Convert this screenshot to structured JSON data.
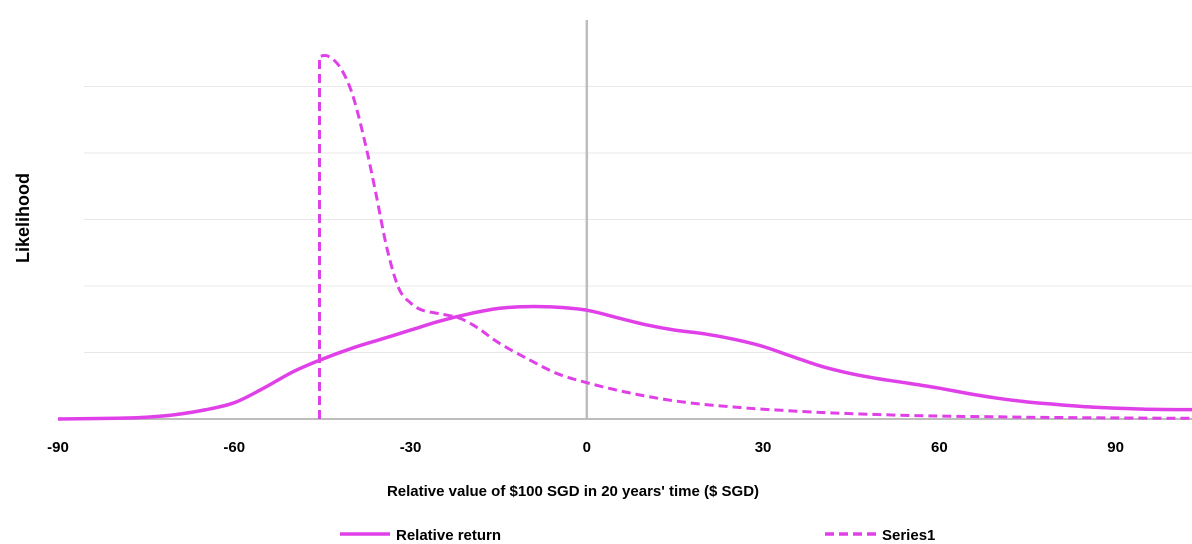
{
  "chart_data": {
    "type": "area",
    "xlabel": "Relative value of $100 SGD in 20 years' time ($ SGD)",
    "ylabel": "Likelihood",
    "xlim": [
      -90,
      103
    ],
    "ylim": [
      0,
      1.1
    ],
    "x_ticks": [
      -90,
      -60,
      -30,
      0,
      30,
      60,
      90
    ],
    "grid": true,
    "legend_position": "bottom",
    "colors": {
      "series": "#e040e8",
      "grid": "#e8e8e8",
      "zero_line": "#bdbdbd"
    },
    "series": [
      {
        "name": "Relative return",
        "style": "solid",
        "x": [
          -90,
          -80,
          -75,
          -70,
          -65,
          -60,
          -55,
          -50,
          -45,
          -40,
          -35,
          -30,
          -25,
          -20,
          -15,
          -10,
          -5,
          0,
          5,
          10,
          15,
          20,
          25,
          30,
          35,
          40,
          45,
          50,
          55,
          60,
          65,
          70,
          75,
          80,
          85,
          90,
          95,
          100,
          103
        ],
        "y": [
          0.0,
          0.002,
          0.005,
          0.012,
          0.025,
          0.045,
          0.085,
          0.13,
          0.165,
          0.195,
          0.22,
          0.245,
          0.27,
          0.29,
          0.305,
          0.31,
          0.308,
          0.3,
          0.28,
          0.26,
          0.245,
          0.235,
          0.22,
          0.2,
          0.172,
          0.145,
          0.125,
          0.11,
          0.098,
          0.085,
          0.07,
          0.057,
          0.047,
          0.04,
          0.034,
          0.03,
          0.027,
          0.026,
          0.026
        ]
      },
      {
        "name": "Series1",
        "style": "dashed",
        "x": [
          -45.5,
          -45.5,
          -44,
          -42,
          -40,
          -38,
          -36,
          -34,
          -32,
          -30,
          -28,
          -25,
          -22,
          -20,
          -18,
          -15,
          -10,
          -5,
          0,
          5,
          10,
          15,
          20,
          25,
          30,
          40,
          50,
          60,
          70,
          80,
          90,
          100,
          103
        ],
        "y": [
          0.0,
          1.0,
          1.0,
          0.97,
          0.9,
          0.78,
          0.63,
          0.47,
          0.36,
          0.32,
          0.3,
          0.29,
          0.28,
          0.265,
          0.245,
          0.21,
          0.165,
          0.125,
          0.1,
          0.08,
          0.063,
          0.05,
          0.04,
          0.033,
          0.027,
          0.018,
          0.012,
          0.008,
          0.006,
          0.004,
          0.003,
          0.002,
          0.002
        ]
      }
    ]
  }
}
